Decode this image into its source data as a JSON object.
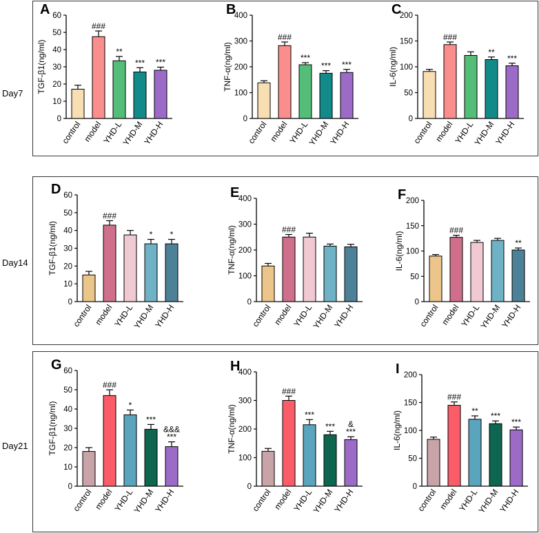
{
  "figure": {
    "rows": [
      {
        "label": "Day7",
        "panels": [
          0,
          1,
          2
        ]
      },
      {
        "label": "Day14",
        "panels": [
          3,
          4,
          5
        ]
      },
      {
        "label": "Day21",
        "panels": [
          6,
          7,
          8
        ]
      }
    ]
  },
  "chart_data": [
    {
      "type": "bar",
      "panel_letter": "A",
      "title": "",
      "xlabel": "",
      "ylabel": "TGF-β1(ng/ml)",
      "ylim": [
        0,
        60
      ],
      "yticks": [
        0,
        10,
        20,
        30,
        40,
        50,
        60
      ],
      "categories": [
        "control",
        "model",
        "YHD-L",
        "YHD-M",
        "YHD-H"
      ],
      "values": [
        17,
        47.5,
        33.5,
        27,
        28
      ],
      "errors": [
        2.3,
        3.3,
        2.5,
        2.5,
        1.8
      ],
      "annotations": [
        [],
        [
          "###"
        ],
        [
          "**"
        ],
        [
          "***"
        ],
        [
          "***"
        ]
      ],
      "colors": [
        "#F8DEB3",
        "#FA8E8C",
        "#54BD77",
        "#128A8A",
        "#9C6BC8"
      ]
    },
    {
      "type": "bar",
      "panel_letter": "B",
      "title": "",
      "xlabel": "",
      "ylabel": "TNF-α(ng/ml)",
      "ylim": [
        0,
        400
      ],
      "yticks": [
        0,
        100,
        200,
        300,
        400
      ],
      "categories": [
        "control",
        "model",
        "YHD-L",
        "YHD-M",
        "YHD-H"
      ],
      "values": [
        138,
        282,
        208,
        175,
        178
      ],
      "errors": [
        8,
        14,
        8,
        10,
        12
      ],
      "annotations": [
        [],
        [
          "###"
        ],
        [
          "***"
        ],
        [
          "***"
        ],
        [
          "***"
        ]
      ],
      "colors": [
        "#F8DEB3",
        "#FA8E8C",
        "#54BD77",
        "#128A8A",
        "#9C6BC8"
      ]
    },
    {
      "type": "bar",
      "panel_letter": "C",
      "title": "",
      "xlabel": "",
      "ylabel": "IL-6(ng/ml)",
      "ylim": [
        0,
        200
      ],
      "yticks": [
        0,
        50,
        100,
        150,
        200
      ],
      "categories": [
        "control",
        "model",
        "YHD-L",
        "YHD-M",
        "YHD-H"
      ],
      "values": [
        91,
        143,
        122,
        114,
        102
      ],
      "errors": [
        4,
        5,
        7,
        5,
        5
      ],
      "annotations": [
        [],
        [
          "###"
        ],
        [],
        [
          "**"
        ],
        [
          "***"
        ]
      ],
      "colors": [
        "#F8DEB3",
        "#FA8E8C",
        "#54BD77",
        "#128A8A",
        "#9C6BC8"
      ]
    },
    {
      "type": "bar",
      "panel_letter": "D",
      "title": "",
      "xlabel": "",
      "ylabel": "TGF-β1(ng/ml)",
      "ylim": [
        0,
        60
      ],
      "yticks": [
        0,
        10,
        20,
        30,
        40,
        50,
        60
      ],
      "categories": [
        "control",
        "model",
        "YHD-L",
        "YHD-M",
        "YHD-H"
      ],
      "values": [
        15,
        43,
        37.5,
        32.5,
        32.5
      ],
      "errors": [
        2,
        2.5,
        2.5,
        2.5,
        2.5
      ],
      "annotations": [
        [],
        [
          "###"
        ],
        [],
        [
          "*"
        ],
        [
          "*"
        ]
      ],
      "colors": [
        "#EBC58A",
        "#CF6F8B",
        "#F0C9D2",
        "#70B2C5",
        "#4C8198"
      ]
    },
    {
      "type": "bar",
      "panel_letter": "E",
      "title": "",
      "xlabel": "",
      "ylabel": "TNF-α(ng/ml)",
      "ylim": [
        0,
        400
      ],
      "yticks": [
        0,
        100,
        200,
        300,
        400
      ],
      "categories": [
        "control",
        "model",
        "YHD-L",
        "YHD-M",
        "YHD-H"
      ],
      "values": [
        138,
        250,
        250,
        215,
        212
      ],
      "errors": [
        10,
        10,
        15,
        8,
        10
      ],
      "annotations": [
        [],
        [
          "###"
        ],
        [],
        [],
        []
      ],
      "colors": [
        "#EBC58A",
        "#CF6F8B",
        "#F0C9D2",
        "#70B2C5",
        "#4C8198"
      ]
    },
    {
      "type": "bar",
      "panel_letter": "F",
      "title": "",
      "xlabel": "",
      "ylabel": "IL-6(ng/ml)",
      "ylim": [
        0,
        200
      ],
      "yticks": [
        0,
        50,
        100,
        150,
        200
      ],
      "categories": [
        "control",
        "model",
        "YHD-L",
        "YHD-M",
        "YHD-H"
      ],
      "values": [
        90,
        127,
        117,
        121,
        102
      ],
      "errors": [
        3,
        4,
        4,
        4,
        4
      ],
      "annotations": [
        [],
        [
          "###"
        ],
        [],
        [],
        [
          "**"
        ]
      ],
      "colors": [
        "#EBC58A",
        "#CF6F8B",
        "#F0C9D2",
        "#70B2C5",
        "#4C8198"
      ]
    },
    {
      "type": "bar",
      "panel_letter": "G",
      "title": "",
      "xlabel": "",
      "ylabel": "TGF-β1(ng/ml)",
      "ylim": [
        0,
        60
      ],
      "yticks": [
        0,
        10,
        20,
        30,
        40,
        50,
        60
      ],
      "categories": [
        "control",
        "model",
        "YHD-L",
        "YHD-M",
        "YHD-H"
      ],
      "values": [
        18,
        47,
        37,
        29.5,
        20.5
      ],
      "errors": [
        2,
        3,
        2.5,
        2.5,
        2.5
      ],
      "annotations": [
        [],
        [
          "###"
        ],
        [
          "*"
        ],
        [
          "***"
        ],
        [
          "&&&",
          "***"
        ]
      ],
      "colors": [
        "#C8A4A9",
        "#FA5D68",
        "#5BA4BD",
        "#0E6650",
        "#9B6BC7"
      ]
    },
    {
      "type": "bar",
      "panel_letter": "H",
      "title": "",
      "xlabel": "",
      "ylabel": "TNF-α(ng/ml)",
      "ylim": [
        0,
        400
      ],
      "yticks": [
        0,
        100,
        200,
        300,
        400
      ],
      "categories": [
        "control",
        "model",
        "YHD-L",
        "YHD-M",
        "YHD-H"
      ],
      "values": [
        122,
        300,
        215,
        180,
        163
      ],
      "errors": [
        10,
        15,
        18,
        12,
        10
      ],
      "annotations": [
        [],
        [
          "###"
        ],
        [
          "***"
        ],
        [
          "***"
        ],
        [
          "&",
          "***"
        ]
      ],
      "colors": [
        "#C8A4A9",
        "#FA5D68",
        "#5BA4BD",
        "#0E6650",
        "#9B6BC7"
      ]
    },
    {
      "type": "bar",
      "panel_letter": "I",
      "title": "",
      "xlabel": "",
      "ylabel": "IL-6(ng/ml)",
      "ylim": [
        0,
        200
      ],
      "yticks": [
        0,
        50,
        100,
        150,
        200
      ],
      "categories": [
        "control",
        "model",
        "YHD-L",
        "YHD-M",
        "YHD-H"
      ],
      "values": [
        84,
        145,
        120,
        112,
        101
      ],
      "errors": [
        4,
        6,
        6,
        5,
        5
      ],
      "annotations": [
        [],
        [
          "###"
        ],
        [
          "**"
        ],
        [
          "***"
        ],
        [
          "***"
        ]
      ],
      "colors": [
        "#C8A4A9",
        "#FA5D68",
        "#5BA4BD",
        "#0E6650",
        "#9B6BC7"
      ]
    }
  ]
}
